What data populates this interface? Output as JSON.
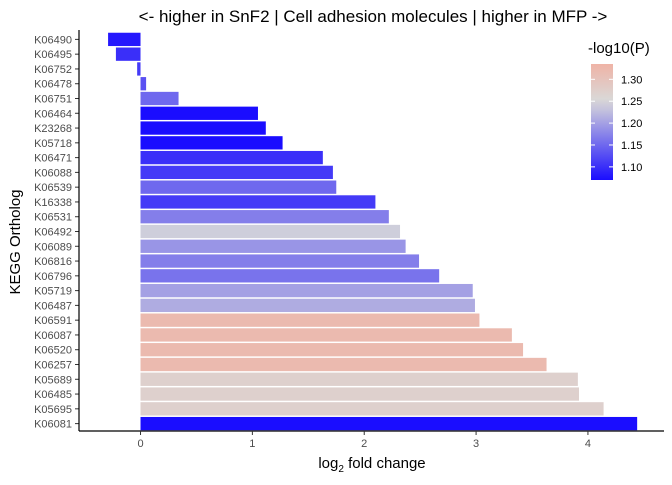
{
  "chart_data": {
    "type": "bar",
    "orientation": "horizontal",
    "title": "<- higher in SnF2 | Cell adhesion molecules | higher in MFP ->",
    "xlabel_main": "log",
    "xlabel_sub": "2",
    "xlabel_rest": " fold change",
    "ylabel": "KEGG Ortholog",
    "xlim": [
      -0.55,
      4.68
    ],
    "xticks": [
      0,
      1,
      2,
      3,
      4
    ],
    "xtick_labels": [
      "0",
      "1",
      "2",
      "3",
      "4"
    ],
    "grid": false,
    "legend": {
      "title": "-log10(P)",
      "placement": "top-right",
      "range": [
        1.07,
        1.335
      ],
      "ticks": [
        1.1,
        1.15,
        1.2,
        1.25,
        1.3
      ],
      "tick_labels": [
        "1.10",
        "1.15",
        "1.20",
        "1.25",
        "1.30"
      ],
      "colors": {
        "low": "#1a0dff",
        "mid": "#d9d9d9",
        "high": "#efb3a6"
      },
      "midpoint": 1.25
    },
    "bars": [
      {
        "label": "K06490",
        "value": -0.29,
        "p": 1.08
      },
      {
        "label": "K06495",
        "value": -0.22,
        "p": 1.1
      },
      {
        "label": "K06752",
        "value": -0.03,
        "p": 1.11
      },
      {
        "label": "K06478",
        "value": 0.05,
        "p": 1.13
      },
      {
        "label": "K06751",
        "value": 0.34,
        "p": 1.15
      },
      {
        "label": "K06464",
        "value": 1.05,
        "p": 1.07
      },
      {
        "label": "K23268",
        "value": 1.12,
        "p": 1.07
      },
      {
        "label": "K05718",
        "value": 1.27,
        "p": 1.07
      },
      {
        "label": "K06471",
        "value": 1.63,
        "p": 1.1
      },
      {
        "label": "K06088",
        "value": 1.72,
        "p": 1.11
      },
      {
        "label": "K06539",
        "value": 1.75,
        "p": 1.15
      },
      {
        "label": "K16338",
        "value": 2.1,
        "p": 1.11
      },
      {
        "label": "K06531",
        "value": 2.22,
        "p": 1.17
      },
      {
        "label": "K06492",
        "value": 2.32,
        "p": 1.24
      },
      {
        "label": "K06089",
        "value": 2.37,
        "p": 1.19
      },
      {
        "label": "K06816",
        "value": 2.49,
        "p": 1.17
      },
      {
        "label": "K06796",
        "value": 2.67,
        "p": 1.16
      },
      {
        "label": "K05719",
        "value": 2.97,
        "p": 1.2
      },
      {
        "label": "K06487",
        "value": 2.99,
        "p": 1.21
      },
      {
        "label": "K06591",
        "value": 3.03,
        "p": 1.32
      },
      {
        "label": "K06087",
        "value": 3.32,
        "p": 1.32
      },
      {
        "label": "K06520",
        "value": 3.42,
        "p": 1.32
      },
      {
        "label": "K06257",
        "value": 3.63,
        "p": 1.32
      },
      {
        "label": "K05689",
        "value": 3.91,
        "p": 1.27
      },
      {
        "label": "K06485",
        "value": 3.92,
        "p": 1.27
      },
      {
        "label": "K05695",
        "value": 4.14,
        "p": 1.27
      },
      {
        "label": "K06081",
        "value": 4.44,
        "p": 1.07
      }
    ]
  }
}
